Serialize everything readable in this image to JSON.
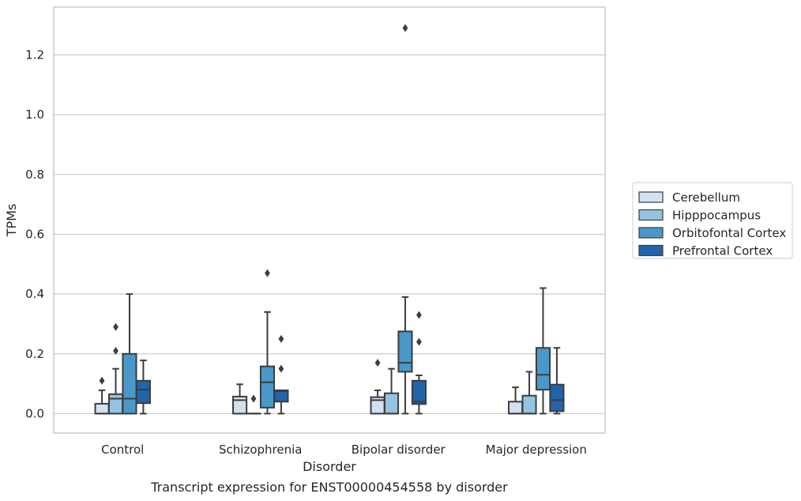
{
  "chart_data": {
    "type": "box",
    "title": "",
    "caption": "Transcript expression for ENST00000454558 by disorder",
    "xlabel": "Disorder",
    "ylabel": "TPMs",
    "ylim": [
      -0.065,
      1.36
    ],
    "yticks": [
      0.0,
      0.2,
      0.4,
      0.6,
      0.8,
      1.0,
      1.2
    ],
    "ytick_labels": [
      "0.0",
      "0.2",
      "0.4",
      "0.6",
      "0.8",
      "1.0",
      "1.2"
    ],
    "grid": true,
    "legend_position": "right",
    "categories": [
      "Control",
      "Schizophrenia",
      "Bipolar disorder",
      "Major depression"
    ],
    "series": [
      {
        "name": "Cerebellum",
        "color": "#d0e1f2",
        "boxes": [
          {
            "whislo": 0.0,
            "q1": 0.0,
            "med": 0.0,
            "q3": 0.033,
            "whishi": 0.078,
            "fliers": [
              0.11
            ]
          },
          {
            "whislo": 0.0,
            "q1": 0.0,
            "med": 0.045,
            "q3": 0.057,
            "whishi": 0.098,
            "fliers": []
          },
          {
            "whislo": 0.0,
            "q1": 0.0,
            "med": 0.045,
            "q3": 0.055,
            "whishi": 0.078,
            "fliers": [
              0.17
            ]
          },
          {
            "whislo": 0.0,
            "q1": 0.0,
            "med": 0.0,
            "q3": 0.04,
            "whishi": 0.088,
            "fliers": []
          }
        ]
      },
      {
        "name": "Hipppocampus",
        "color": "#94c4df",
        "boxes": [
          {
            "whislo": 0.0,
            "q1": 0.0,
            "med": 0.05,
            "q3": 0.065,
            "whishi": 0.15,
            "fliers": [
              0.21,
              0.29
            ]
          },
          {
            "whislo": 0.0,
            "q1": 0.0,
            "med": 0.0,
            "q3": 0.0,
            "whishi": 0.0,
            "fliers": [
              0.05
            ]
          },
          {
            "whislo": 0.0,
            "q1": 0.0,
            "med": 0.0,
            "q3": 0.068,
            "whishi": 0.15,
            "fliers": []
          },
          {
            "whislo": 0.0,
            "q1": 0.0,
            "med": 0.0,
            "q3": 0.06,
            "whishi": 0.14,
            "fliers": []
          }
        ]
      },
      {
        "name": "Orbitofontal Cortex",
        "color": "#4a98c9",
        "boxes": [
          {
            "whislo": 0.0,
            "q1": 0.0,
            "med": 0.05,
            "q3": 0.2,
            "whishi": 0.4,
            "fliers": []
          },
          {
            "whislo": 0.0,
            "q1": 0.02,
            "med": 0.105,
            "q3": 0.158,
            "whishi": 0.34,
            "fliers": [
              0.47
            ]
          },
          {
            "whislo": 0.0,
            "q1": 0.14,
            "med": 0.17,
            "q3": 0.275,
            "whishi": 0.39,
            "fliers": [
              1.29
            ]
          },
          {
            "whislo": 0.0,
            "q1": 0.08,
            "med": 0.13,
            "q3": 0.22,
            "whishi": 0.42,
            "fliers": []
          }
        ]
      },
      {
        "name": "Prefrontal Cortex",
        "color": "#2164ab",
        "boxes": [
          {
            "whislo": 0.0,
            "q1": 0.035,
            "med": 0.08,
            "q3": 0.11,
            "whishi": 0.178,
            "fliers": []
          },
          {
            "whislo": 0.0,
            "q1": 0.04,
            "med": 0.075,
            "q3": 0.078,
            "whishi": 0.078,
            "fliers": [
              0.15,
              0.25
            ]
          },
          {
            "whislo": 0.0,
            "q1": 0.032,
            "med": 0.04,
            "q3": 0.11,
            "whishi": 0.128,
            "fliers": [
              0.24,
              0.33
            ]
          },
          {
            "whislo": 0.0,
            "q1": 0.008,
            "med": 0.045,
            "q3": 0.097,
            "whishi": 0.22,
            "fliers": []
          }
        ]
      }
    ]
  }
}
